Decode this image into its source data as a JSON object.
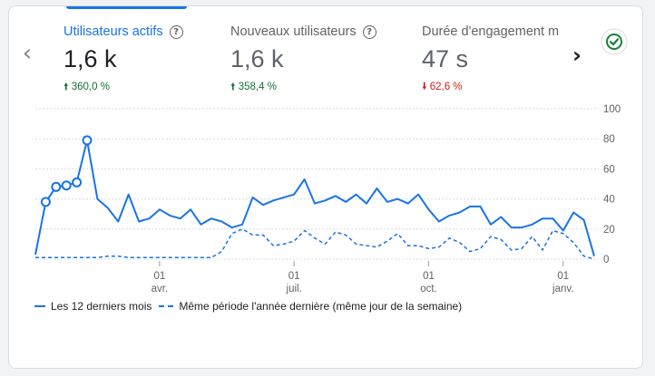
{
  "metrics": [
    {
      "label": "Utilisateurs actifs",
      "value": "1,6 k",
      "delta": "360,0 %",
      "direction": "up"
    },
    {
      "label": "Nouveaux utilisateurs",
      "value": "1,6 k",
      "delta": "358,4 %",
      "direction": "up"
    },
    {
      "label": "Durée d'engagement m",
      "value": "47 s",
      "delta": "62,6 %",
      "direction": "down"
    }
  ],
  "icons": {
    "prev": "chevron-left-icon",
    "next": "chevron-right-icon",
    "help": "help-circle-icon",
    "status": "check-circle-icon",
    "up": "arrow-up-icon",
    "down": "arrow-down-icon"
  },
  "colors": {
    "accent": "#1a73e8",
    "up": "#137333",
    "down": "#c5221f",
    "grid": "#dadce0"
  },
  "chart_data": {
    "type": "line",
    "ylim": [
      0,
      100
    ],
    "y_ticks": [
      0,
      20,
      40,
      60,
      80,
      100
    ],
    "x_ticks": [
      {
        "index": 12,
        "line1": "01",
        "line2": "avr."
      },
      {
        "index": 25,
        "line1": "01",
        "line2": "juil."
      },
      {
        "index": 38,
        "line1": "01",
        "line2": "oct."
      },
      {
        "index": 51,
        "line1": "01",
        "line2": "janv."
      }
    ],
    "grid": true,
    "legend_position": "bottom-left",
    "series": [
      {
        "name": "Les 12 derniers mois",
        "style": "solid",
        "markers": [
          1,
          2,
          3,
          4,
          5
        ],
        "values": [
          3,
          38,
          48,
          49,
          51,
          79,
          40,
          34,
          25,
          43,
          25,
          27,
          33,
          29,
          27,
          33,
          23,
          27,
          25,
          21,
          23,
          41,
          36,
          39,
          41,
          43,
          53,
          37,
          39,
          42,
          38,
          43,
          37,
          47,
          38,
          40,
          37,
          43,
          33,
          25,
          29,
          31,
          35,
          35,
          23,
          28,
          21,
          21,
          23,
          27,
          27,
          19,
          31,
          26,
          2
        ]
      },
      {
        "name": "Même période l'année dernière (même jour de la semaine)",
        "style": "dashed",
        "values": [
          1,
          1,
          1,
          1,
          1,
          1,
          1,
          2,
          2,
          1,
          1,
          1,
          1,
          1,
          1,
          1,
          1,
          1,
          5,
          17,
          20,
          16,
          16,
          9,
          10,
          12,
          19,
          14,
          10,
          18,
          16,
          10,
          9,
          8,
          12,
          17,
          9,
          9,
          7,
          8,
          14,
          11,
          5,
          7,
          15,
          13,
          6,
          7,
          15,
          6,
          19,
          17,
          11,
          2,
          0
        ]
      }
    ]
  }
}
